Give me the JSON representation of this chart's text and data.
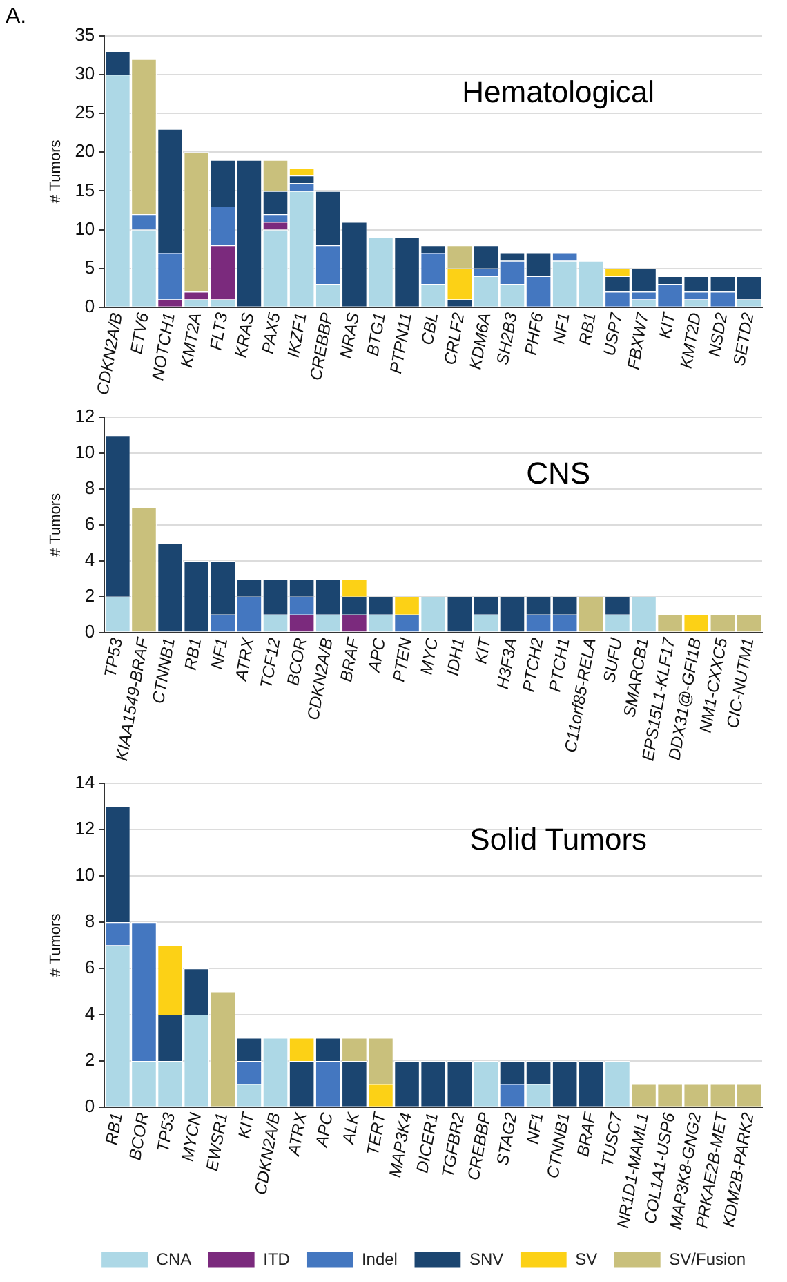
{
  "chart_data": [
    {
      "type": "bar",
      "stacked": true,
      "title": "Hematological",
      "ylabel": "# Tumors",
      "annotations": [
        "A."
      ],
      "ylim": [
        0,
        35
      ],
      "yticks": [
        0,
        5,
        10,
        15,
        20,
        25,
        30,
        35
      ],
      "grid": "y",
      "legend": false,
      "categories": [
        "CDKN2A/B",
        "ETV6",
        "NOTCH1",
        "KMT2A",
        "FLT3",
        "KRAS",
        "PAX5",
        "IKZF1",
        "CREBBP",
        "NRAS",
        "BTG1",
        "PTPN11",
        "CBL",
        "CRLF2",
        "KDM6A",
        "SH2B3",
        "PHF6",
        "NF1",
        "RB1",
        "USP7",
        "FBXW7",
        "KIT",
        "KMT2D",
        "NSD2",
        "SETD2"
      ],
      "series": [
        {
          "color": "#add8e6",
          "values": [
            30,
            10,
            0,
            1,
            1,
            0,
            10,
            15,
            3,
            0,
            9,
            0,
            3,
            0,
            4,
            3,
            0,
            6,
            6,
            0,
            1,
            0,
            1,
            0,
            1
          ]
        },
        {
          "color": "#7b2a7d",
          "values": [
            0,
            0,
            1,
            1,
            7,
            0,
            1,
            0,
            0,
            0,
            0,
            0,
            0,
            0,
            0,
            0,
            0,
            0,
            0,
            0,
            0,
            0,
            0,
            0,
            0
          ]
        },
        {
          "color": "#4477c0",
          "values": [
            0,
            2,
            6,
            0,
            5,
            0,
            1,
            1,
            5,
            0,
            0,
            0,
            4,
            0,
            1,
            3,
            4,
            1,
            0,
            2,
            1,
            3,
            1,
            2,
            0
          ]
        },
        {
          "color": "#1b4570",
          "values": [
            3,
            0,
            16,
            0,
            6,
            19,
            3,
            1,
            7,
            11,
            0,
            9,
            1,
            1,
            3,
            1,
            3,
            0,
            0,
            2,
            3,
            1,
            2,
            2,
            3
          ]
        },
        {
          "color": "#fcd116",
          "values": [
            0,
            0,
            0,
            0,
            0,
            0,
            0,
            1,
            0,
            0,
            0,
            0,
            0,
            4,
            0,
            0,
            0,
            0,
            0,
            1,
            0,
            0,
            0,
            0,
            0
          ]
        },
        {
          "color": "#c9c07c",
          "values": [
            0,
            20,
            0,
            18,
            0,
            0,
            4,
            0,
            0,
            0,
            0,
            0,
            0,
            3,
            0,
            0,
            0,
            0,
            0,
            0,
            0,
            0,
            0,
            0,
            0
          ]
        }
      ]
    },
    {
      "type": "bar",
      "stacked": true,
      "title": "CNS",
      "ylabel": "# Tumors",
      "ylim": [
        0,
        12
      ],
      "yticks": [
        0,
        2,
        4,
        6,
        8,
        10,
        12
      ],
      "grid": "y",
      "legend": false,
      "categories": [
        "TP53",
        "KIAA1549-BRAF",
        "CTNNB1",
        "RB1",
        "NF1",
        "ATRX",
        "TCF12",
        "BCOR",
        "CDKN2A/B",
        "BRAF",
        "APC",
        "PTEN",
        "MYC",
        "IDH1",
        "KIT",
        "H3F3A",
        "PTCH2",
        "PTCH1",
        "C11orf85-RELA",
        "SUFU",
        "SMARCB1",
        "EPS15L1-KLF17",
        "DDX31@-GFI1B",
        "NM1-CXXC5",
        "CIC-NUTM1"
      ],
      "series": [
        {
          "color": "#add8e6",
          "values": [
            2,
            0,
            0,
            0,
            0,
            0,
            1,
            0,
            1,
            0,
            1,
            0,
            2,
            0,
            1,
            0,
            0,
            0,
            0,
            1,
            2,
            0,
            0,
            0,
            0
          ]
        },
        {
          "color": "#7b2a7d",
          "values": [
            0,
            0,
            0,
            0,
            0,
            0,
            0,
            1,
            0,
            1,
            0,
            0,
            0,
            0,
            0,
            0,
            0,
            0,
            0,
            0,
            0,
            0,
            0,
            0,
            0
          ]
        },
        {
          "color": "#4477c0",
          "values": [
            0,
            0,
            0,
            0,
            1,
            2,
            0,
            1,
            0,
            0,
            0,
            1,
            0,
            0,
            0,
            0,
            1,
            1,
            0,
            0,
            0,
            0,
            0,
            0,
            0
          ]
        },
        {
          "color": "#1b4570",
          "values": [
            9,
            0,
            5,
            4,
            3,
            1,
            2,
            1,
            2,
            1,
            1,
            0,
            0,
            2,
            1,
            2,
            1,
            1,
            0,
            1,
            0,
            0,
            0,
            0,
            0
          ]
        },
        {
          "color": "#fcd116",
          "values": [
            0,
            0,
            0,
            0,
            0,
            0,
            0,
            0,
            0,
            1,
            0,
            1,
            0,
            0,
            0,
            0,
            0,
            0,
            0,
            0,
            0,
            0,
            1,
            0,
            0
          ]
        },
        {
          "color": "#c9c07c",
          "values": [
            0,
            7,
            0,
            0,
            0,
            0,
            0,
            0,
            0,
            0,
            0,
            0,
            0,
            0,
            0,
            0,
            0,
            0,
            2,
            0,
            0,
            1,
            0,
            1,
            1
          ]
        }
      ]
    },
    {
      "type": "bar",
      "stacked": true,
      "title": "Solid Tumors",
      "ylabel": "# Tumors",
      "ylim": [
        0,
        14
      ],
      "yticks": [
        0,
        2,
        4,
        6,
        8,
        10,
        12,
        14
      ],
      "grid": "y",
      "legend": "bottom",
      "categories": [
        "RB1",
        "BCOR",
        "TP53",
        "MYCN",
        "EWSR1",
        "KIT",
        "CDKN2A/B",
        "ATRX",
        "APC",
        "ALK",
        "TERT",
        "MAP3K4",
        "DICER1",
        "TGFBR2",
        "CREBBP",
        "STAG2",
        "NF1",
        "CTNNB1",
        "BRAF",
        "TUSC7",
        "NR1D1-MAML1",
        "COL1A1-USP6",
        "MAP3K8-GNG2",
        "PRKAE2B-MET",
        "KDM2B-PARK2"
      ],
      "series": [
        {
          "name": "CNA",
          "color": "#add8e6",
          "values": [
            7,
            2,
            2,
            4,
            0,
            1,
            3,
            0,
            0,
            0,
            0,
            0,
            0,
            0,
            2,
            0,
            1,
            0,
            0,
            2,
            0,
            0,
            0,
            0,
            0
          ]
        },
        {
          "name": "ITD",
          "color": "#7b2a7d",
          "values": [
            0,
            0,
            0,
            0,
            0,
            0,
            0,
            0,
            0,
            0,
            0,
            0,
            0,
            0,
            0,
            0,
            0,
            0,
            0,
            0,
            0,
            0,
            0,
            0,
            0
          ]
        },
        {
          "name": "Indel",
          "color": "#4477c0",
          "values": [
            1,
            6,
            0,
            0,
            0,
            1,
            0,
            0,
            2,
            0,
            0,
            0,
            0,
            0,
            0,
            1,
            0,
            0,
            0,
            0,
            0,
            0,
            0,
            0,
            0
          ]
        },
        {
          "name": "SNV",
          "color": "#1b4570",
          "values": [
            5,
            0,
            2,
            2,
            0,
            1,
            0,
            2,
            1,
            2,
            0,
            2,
            2,
            2,
            0,
            1,
            1,
            2,
            2,
            0,
            0,
            0,
            0,
            0,
            0
          ]
        },
        {
          "name": "SV",
          "color": "#fcd116",
          "values": [
            0,
            0,
            3,
            0,
            0,
            0,
            0,
            1,
            0,
            0,
            1,
            0,
            0,
            0,
            0,
            0,
            0,
            0,
            0,
            0,
            0,
            0,
            0,
            0,
            0
          ]
        },
        {
          "name": "SV/Fusion",
          "color": "#c9c07c",
          "values": [
            0,
            0,
            0,
            0,
            5,
            0,
            0,
            0,
            0,
            1,
            2,
            0,
            0,
            0,
            0,
            0,
            0,
            0,
            0,
            0,
            1,
            1,
            1,
            1,
            1
          ]
        }
      ]
    }
  ]
}
